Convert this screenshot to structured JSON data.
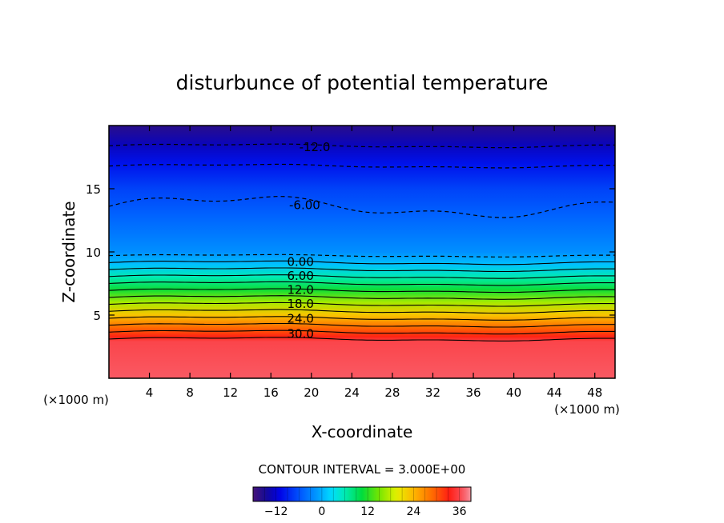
{
  "chart_data": {
    "type": "heatmap",
    "title": "disturbunce of potential temperature",
    "xlabel": "X-coordinate",
    "ylabel": "Z-coordinate",
    "x_unit_left": "(×1000 m)",
    "x_unit_right": "(×1000 m)",
    "xlim": [
      0,
      50
    ],
    "ylim": [
      0,
      20
    ],
    "x_ticks": [
      4,
      8,
      12,
      16,
      20,
      24,
      28,
      32,
      36,
      40,
      44,
      48
    ],
    "x_tick_labels": [
      "4",
      "8",
      "12",
      "16",
      "20",
      "24",
      "28",
      "32",
      "36",
      "40",
      "44",
      "48"
    ],
    "y_ticks": [
      5,
      10,
      15
    ],
    "y_tick_labels": [
      "5",
      "10",
      "15"
    ],
    "contour_interval_text": "CONTOUR INTERVAL = 3.000E+00",
    "colorbar": {
      "min": -18,
      "max": 39,
      "ticks": [
        -12,
        0,
        12,
        24,
        36
      ],
      "tick_labels": [
        "−12",
        "0",
        "12",
        "24",
        "36"
      ]
    },
    "contour_labels": [
      {
        "text": "-12.0",
        "x": 18.8,
        "z": 18.3
      },
      {
        "text": "-6.00",
        "x": 17.8,
        "z": 13.7
      },
      {
        "text": "0.00",
        "x": 17.6,
        "z": 9.2
      },
      {
        "text": "6.00",
        "x": 17.6,
        "z": 8.1
      },
      {
        "text": "12.0",
        "x": 17.6,
        "z": 7.0
      },
      {
        "text": "18.0",
        "x": 17.6,
        "z": 5.9
      },
      {
        "text": "24.0",
        "x": 17.6,
        "z": 4.7
      },
      {
        "text": "30.0",
        "x": 17.6,
        "z": 3.5
      }
    ],
    "profile": [
      {
        "z": 0,
        "value": 37
      },
      {
        "z": 2.9,
        "value": 36
      },
      {
        "z": 3.3,
        "value": 33
      },
      {
        "z": 4.0,
        "value": 29
      },
      {
        "z": 5.0,
        "value": 23
      },
      {
        "z": 6.0,
        "value": 17
      },
      {
        "z": 7.0,
        "value": 11
      },
      {
        "z": 8.0,
        "value": 6
      },
      {
        "z": 9.0,
        "value": 1
      },
      {
        "z": 10.0,
        "value": -2
      },
      {
        "z": 13.0,
        "value": -5
      },
      {
        "z": 15.0,
        "value": -7
      },
      {
        "z": 17.0,
        "value": -10
      },
      {
        "z": 18.5,
        "value": -13
      },
      {
        "z": 20.0,
        "value": -16
      }
    ]
  }
}
